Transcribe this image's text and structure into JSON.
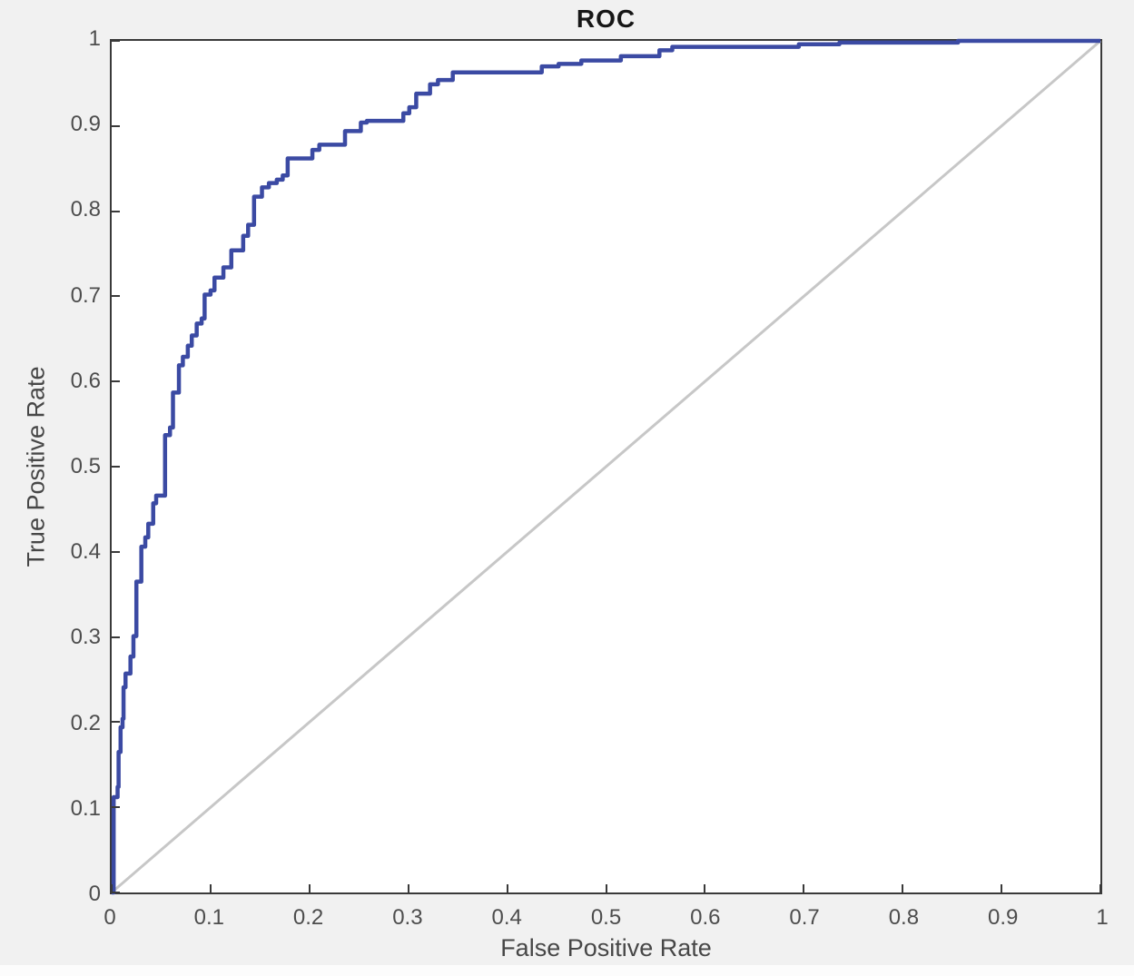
{
  "figure": {
    "background": "#f1f1f1",
    "plot_background": "#ffffff",
    "axis_color": "#3a3a3a",
    "tick_label_color": "#4d4d4d"
  },
  "chart_data": {
    "type": "line",
    "title": "ROC",
    "xlabel": "False Positive Rate",
    "ylabel": "True Positive Rate",
    "xlim": [
      0,
      1
    ],
    "ylim": [
      0,
      1
    ],
    "grid": false,
    "legend_position": "none",
    "x_ticks": [
      "0",
      "0.1",
      "0.2",
      "0.3",
      "0.4",
      "0.5",
      "0.6",
      "0.7",
      "0.8",
      "0.9",
      "1"
    ],
    "y_ticks_top_to_bottom": [
      "1",
      "0.9",
      "0.8",
      "0.7",
      "0.6",
      "0.5",
      "0.4",
      "0.3",
      "0.2",
      "0.1",
      "0"
    ],
    "series": [
      {
        "name": "chance-diagonal-line",
        "color": "#c7c7c7",
        "width": 3,
        "points": [
          [
            0,
            0
          ],
          [
            1,
            1
          ]
        ]
      },
      {
        "name": "roc-curve-line",
        "color": "#3b4aa3",
        "width": 4.5,
        "points": [
          [
            0,
            0
          ],
          [
            0.002,
            0
          ],
          [
            0.002,
            0.112
          ],
          [
            0.006,
            0.112
          ],
          [
            0.006,
            0.124
          ],
          [
            0.007,
            0.124
          ],
          [
            0.007,
            0.165
          ],
          [
            0.009,
            0.165
          ],
          [
            0.009,
            0.194
          ],
          [
            0.011,
            0.194
          ],
          [
            0.011,
            0.204
          ],
          [
            0.012,
            0.204
          ],
          [
            0.012,
            0.241
          ],
          [
            0.014,
            0.241
          ],
          [
            0.014,
            0.257
          ],
          [
            0.019,
            0.257
          ],
          [
            0.019,
            0.277
          ],
          [
            0.022,
            0.277
          ],
          [
            0.022,
            0.301
          ],
          [
            0.025,
            0.301
          ],
          [
            0.025,
            0.365
          ],
          [
            0.03,
            0.365
          ],
          [
            0.03,
            0.406
          ],
          [
            0.034,
            0.406
          ],
          [
            0.034,
            0.417
          ],
          [
            0.037,
            0.417
          ],
          [
            0.037,
            0.433
          ],
          [
            0.042,
            0.433
          ],
          [
            0.042,
            0.457
          ],
          [
            0.045,
            0.457
          ],
          [
            0.045,
            0.466
          ],
          [
            0.054,
            0.466
          ],
          [
            0.054,
            0.537
          ],
          [
            0.059,
            0.537
          ],
          [
            0.059,
            0.546
          ],
          [
            0.062,
            0.546
          ],
          [
            0.062,
            0.587
          ],
          [
            0.068,
            0.587
          ],
          [
            0.068,
            0.619
          ],
          [
            0.072,
            0.619
          ],
          [
            0.072,
            0.629
          ],
          [
            0.077,
            0.629
          ],
          [
            0.077,
            0.642
          ],
          [
            0.081,
            0.642
          ],
          [
            0.081,
            0.654
          ],
          [
            0.086,
            0.654
          ],
          [
            0.086,
            0.668
          ],
          [
            0.091,
            0.668
          ],
          [
            0.091,
            0.674
          ],
          [
            0.094,
            0.674
          ],
          [
            0.094,
            0.702
          ],
          [
            0.1,
            0.702
          ],
          [
            0.1,
            0.707
          ],
          [
            0.104,
            0.707
          ],
          [
            0.104,
            0.722
          ],
          [
            0.113,
            0.722
          ],
          [
            0.113,
            0.734
          ],
          [
            0.121,
            0.734
          ],
          [
            0.121,
            0.754
          ],
          [
            0.133,
            0.754
          ],
          [
            0.133,
            0.771
          ],
          [
            0.138,
            0.771
          ],
          [
            0.138,
            0.784
          ],
          [
            0.144,
            0.784
          ],
          [
            0.144,
            0.817
          ],
          [
            0.152,
            0.817
          ],
          [
            0.152,
            0.828
          ],
          [
            0.159,
            0.828
          ],
          [
            0.159,
            0.833
          ],
          [
            0.167,
            0.833
          ],
          [
            0.167,
            0.837
          ],
          [
            0.173,
            0.837
          ],
          [
            0.173,
            0.842
          ],
          [
            0.178,
            0.842
          ],
          [
            0.178,
            0.862
          ],
          [
            0.203,
            0.862
          ],
          [
            0.203,
            0.872
          ],
          [
            0.21,
            0.872
          ],
          [
            0.21,
            0.878
          ],
          [
            0.236,
            0.878
          ],
          [
            0.236,
            0.894
          ],
          [
            0.252,
            0.894
          ],
          [
            0.252,
            0.904
          ],
          [
            0.258,
            0.904
          ],
          [
            0.258,
            0.906
          ],
          [
            0.295,
            0.906
          ],
          [
            0.295,
            0.915
          ],
          [
            0.301,
            0.915
          ],
          [
            0.301,
            0.922
          ],
          [
            0.308,
            0.922
          ],
          [
            0.308,
            0.938
          ],
          [
            0.322,
            0.938
          ],
          [
            0.322,
            0.949
          ],
          [
            0.33,
            0.949
          ],
          [
            0.33,
            0.954
          ],
          [
            0.345,
            0.954
          ],
          [
            0.345,
            0.963
          ],
          [
            0.435,
            0.963
          ],
          [
            0.435,
            0.97
          ],
          [
            0.452,
            0.97
          ],
          [
            0.452,
            0.973
          ],
          [
            0.475,
            0.973
          ],
          [
            0.475,
            0.977
          ],
          [
            0.515,
            0.977
          ],
          [
            0.515,
            0.982
          ],
          [
            0.554,
            0.982
          ],
          [
            0.554,
            0.989
          ],
          [
            0.567,
            0.989
          ],
          [
            0.567,
            0.993
          ],
          [
            0.695,
            0.993
          ],
          [
            0.695,
            0.996
          ],
          [
            0.736,
            0.996
          ],
          [
            0.736,
            0.998
          ],
          [
            0.856,
            0.998
          ],
          [
            0.856,
            1
          ],
          [
            1,
            1
          ]
        ]
      }
    ]
  }
}
